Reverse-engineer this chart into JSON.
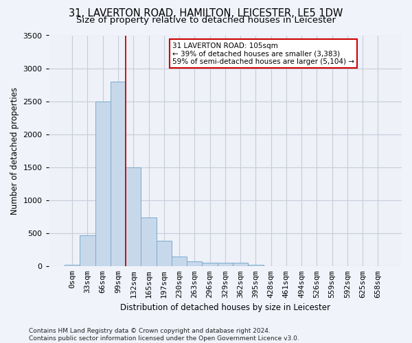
{
  "title_line1": "31, LAVERTON ROAD, HAMILTON, LEICESTER, LE5 1DW",
  "title_line2": "Size of property relative to detached houses in Leicester",
  "xlabel": "Distribution of detached houses by size in Leicester",
  "ylabel": "Number of detached properties",
  "footnote": "Contains HM Land Registry data © Crown copyright and database right 2024.\nContains public sector information licensed under the Open Government Licence v3.0.",
  "bar_labels": [
    "0sqm",
    "33sqm",
    "66sqm",
    "99sqm",
    "132sqm",
    "165sqm",
    "197sqm",
    "230sqm",
    "263sqm",
    "296sqm",
    "329sqm",
    "362sqm",
    "395sqm",
    "428sqm",
    "461sqm",
    "494sqm",
    "526sqm",
    "559sqm",
    "592sqm",
    "625sqm",
    "658sqm"
  ],
  "bar_values": [
    25,
    470,
    2500,
    2800,
    1500,
    740,
    390,
    150,
    80,
    50,
    50,
    50,
    25,
    0,
    0,
    0,
    0,
    0,
    0,
    0,
    0
  ],
  "bar_color": "#c8d8eb",
  "bar_edge_color": "#7aabcc",
  "vline_x": 3.5,
  "vline_color": "#cc0000",
  "annotation_text_line1": "31 LAVERTON ROAD: 105sqm",
  "annotation_text_line2": "← 39% of detached houses are smaller (3,383)",
  "annotation_text_line3": "59% of semi-detached houses are larger (5,104) →",
  "annotation_box_color": "#ffffff",
  "annotation_box_edge_color": "#cc0000",
  "ylim": [
    0,
    3500
  ],
  "yticks": [
    0,
    500,
    1000,
    1500,
    2000,
    2500,
    3000,
    3500
  ],
  "grid_color": "#c8ccd8",
  "bg_color": "#f0f3fa",
  "plot_bg_color": "#eef1f8",
  "title_fontsize": 10.5,
  "subtitle_fontsize": 9.5,
  "axis_label_fontsize": 8.5,
  "ylabel_fontsize": 8.5,
  "tick_fontsize": 8,
  "footnote_fontsize": 6.5
}
